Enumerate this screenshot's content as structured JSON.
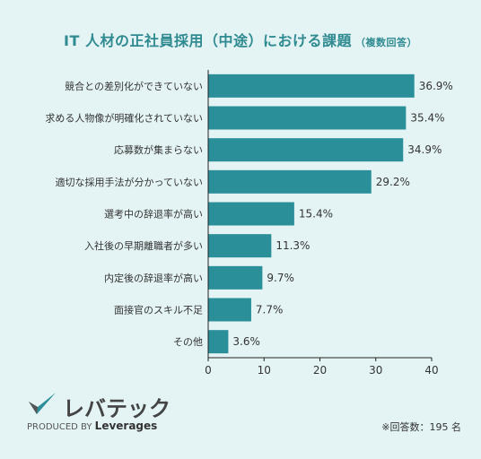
{
  "title": {
    "main": "IT 人材の正社員採用（中途）における課題",
    "note": "（複数回答）"
  },
  "chart_data": {
    "type": "bar",
    "orientation": "horizontal",
    "categories": [
      "競合との差別化ができていない",
      "求める人物像が明確化されていない",
      "応募数が集まらない",
      "適切な採用手法が分かっていない",
      "選考中の辞退率が高い",
      "入社後の早期離職者が多い",
      "内定後の辞退率が高い",
      "面接官のスキル不足",
      "その他"
    ],
    "values": [
      36.9,
      35.4,
      34.9,
      29.2,
      15.4,
      11.3,
      9.7,
      7.7,
      3.6
    ],
    "value_labels": [
      "36.9%",
      "35.4%",
      "34.9%",
      "29.2%",
      "15.4%",
      "11.3%",
      "9.7%",
      "7.7%",
      "3.6%"
    ],
    "xlim": [
      0,
      40
    ],
    "xticks": [
      0,
      10,
      20,
      30,
      40
    ],
    "bar_color": "#2a8f98",
    "grid": false
  },
  "logo": {
    "name": "レバテック",
    "produced_by": "PRODUCED BY",
    "company": "Leverages"
  },
  "footnote": "※回答数：195 名"
}
